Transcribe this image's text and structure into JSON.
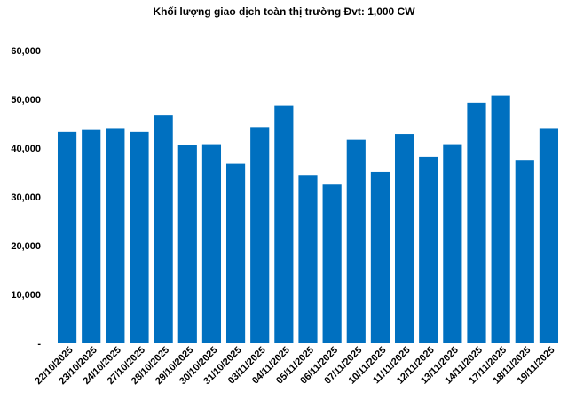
{
  "chart_data": {
    "type": "bar",
    "title": "Khối lượng giao dịch toàn thị trường Đvt: 1,000 CW",
    "xlabel": "",
    "ylabel": "",
    "ylim": [
      0,
      60000
    ],
    "y_ticks": [
      {
        "value": 0,
        "label": "-"
      },
      {
        "value": 10000,
        "label": "10,000"
      },
      {
        "value": 20000,
        "label": "20,000"
      },
      {
        "value": 30000,
        "label": "30,000"
      },
      {
        "value": 40000,
        "label": "40,000"
      },
      {
        "value": 50000,
        "label": "50,000"
      },
      {
        "value": 60000,
        "label": "60,000"
      }
    ],
    "grid": false,
    "legend": "none",
    "bar_color": "#0070C0",
    "categories": [
      "22/10/2025",
      "23/10/2025",
      "24/10/2025",
      "27/10/2025",
      "28/10/2025",
      "29/10/2025",
      "30/10/2025",
      "31/10/2025",
      "03/11/2025",
      "04/11/2025",
      "05/11/2025",
      "06/11/2025",
      "07/11/2025",
      "10/11/2025",
      "11/11/2025",
      "12/11/2025",
      "13/11/2025",
      "14/11/2025",
      "17/11/2025",
      "18/11/2025",
      "19/11/2025"
    ],
    "values": [
      43300,
      43700,
      44100,
      43300,
      46700,
      40600,
      40800,
      36800,
      44300,
      48800,
      34500,
      32500,
      41700,
      35100,
      42900,
      38200,
      40800,
      49300,
      50800,
      37600,
      44100
    ]
  }
}
